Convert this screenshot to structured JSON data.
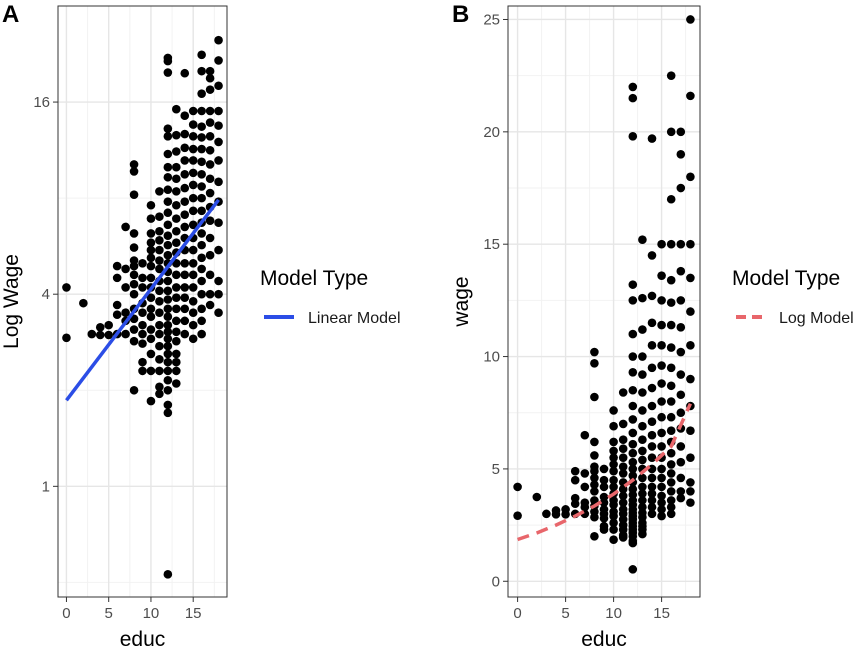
{
  "chart_data": [
    {
      "panel_tag": "A",
      "type": "scatter",
      "xlabel": "educ",
      "ylabel": "Log Wage",
      "y_scale": "log",
      "xlim": [
        -1,
        19
      ],
      "ylim": [
        0.45,
        32
      ],
      "x_ticks": [
        0,
        5,
        10,
        15
      ],
      "x_tick_labels": [
        "0",
        "5",
        "10",
        "15"
      ],
      "y_ticks": [
        1,
        4,
        16
      ],
      "y_tick_labels": [
        "1",
        "4",
        "16"
      ],
      "grid": true,
      "legend": {
        "title": "Model Type",
        "placement": "right",
        "entries": [
          {
            "label": "Linear Model",
            "color": "#2b4de6",
            "style": "solid"
          }
        ]
      },
      "fit_line": {
        "name": "Linear Model",
        "color": "#2b4de6",
        "style": "solid",
        "x": [
          0,
          18
        ],
        "y": [
          1.86,
          7.9
        ]
      },
      "points": [
        [
          0,
          4.2
        ],
        [
          0,
          2.92
        ],
        [
          2,
          3.75
        ],
        [
          3,
          3.0
        ],
        [
          4,
          3.15
        ],
        [
          4,
          2.98
        ],
        [
          5,
          2.98
        ],
        [
          5,
          3.2
        ],
        [
          6,
          3.0
        ],
        [
          6,
          3.45
        ],
        [
          6,
          4.9
        ],
        [
          6,
          4.5
        ],
        [
          6,
          3.7
        ],
        [
          7,
          3.0
        ],
        [
          7,
          3.3
        ],
        [
          7,
          6.5
        ],
        [
          7,
          4.8
        ],
        [
          7,
          4.2
        ],
        [
          7,
          3.5
        ],
        [
          8,
          10.2
        ],
        [
          8,
          9.7
        ],
        [
          8,
          8.2
        ],
        [
          8,
          6.2
        ],
        [
          8,
          5.6
        ],
        [
          8,
          5.1
        ],
        [
          8,
          4.9
        ],
        [
          8,
          4.6
        ],
        [
          8,
          4.3
        ],
        [
          8,
          4.0
        ],
        [
          8,
          3.6
        ],
        [
          8,
          3.35
        ],
        [
          8,
          3.1
        ],
        [
          8,
          2.85
        ],
        [
          8,
          2.0
        ],
        [
          9,
          5.0
        ],
        [
          9,
          4.5
        ],
        [
          9,
          4.2
        ],
        [
          9,
          3.75
        ],
        [
          9,
          3.5
        ],
        [
          9,
          3.2
        ],
        [
          9,
          3.0
        ],
        [
          9,
          2.8
        ],
        [
          9,
          2.45
        ],
        [
          9,
          2.3
        ],
        [
          10,
          7.6
        ],
        [
          10,
          6.9
        ],
        [
          10,
          6.2
        ],
        [
          10,
          5.8
        ],
        [
          10,
          5.5
        ],
        [
          10,
          5.2
        ],
        [
          10,
          4.9
        ],
        [
          10,
          4.5
        ],
        [
          10,
          4.2
        ],
        [
          10,
          3.9
        ],
        [
          10,
          3.6
        ],
        [
          10,
          3.4
        ],
        [
          10,
          3.1
        ],
        [
          10,
          2.9
        ],
        [
          10,
          2.6
        ],
        [
          10,
          2.3
        ],
        [
          10,
          1.85
        ],
        [
          11,
          8.4
        ],
        [
          11,
          7.0
        ],
        [
          11,
          6.3
        ],
        [
          11,
          5.9
        ],
        [
          11,
          5.5
        ],
        [
          11,
          5.1
        ],
        [
          11,
          4.8
        ],
        [
          11,
          4.4
        ],
        [
          11,
          4.1
        ],
        [
          11,
          3.8
        ],
        [
          11,
          3.5
        ],
        [
          11,
          3.2
        ],
        [
          11,
          3.0
        ],
        [
          11,
          2.75
        ],
        [
          11,
          2.5
        ],
        [
          11,
          2.3
        ],
        [
          11,
          2.05
        ],
        [
          11,
          1.95
        ],
        [
          12,
          22.0
        ],
        [
          12,
          21.5
        ],
        [
          12,
          19.8
        ],
        [
          12,
          13.2
        ],
        [
          12,
          12.5
        ],
        [
          12,
          11.0
        ],
        [
          12,
          10.0
        ],
        [
          12,
          9.3
        ],
        [
          12,
          8.5
        ],
        [
          12,
          7.8
        ],
        [
          12,
          7.2
        ],
        [
          12,
          6.6
        ],
        [
          12,
          6.1
        ],
        [
          12,
          5.7
        ],
        [
          12,
          5.3
        ],
        [
          12,
          5.0
        ],
        [
          12,
          4.7
        ],
        [
          12,
          4.4
        ],
        [
          12,
          4.1
        ],
        [
          12,
          3.85
        ],
        [
          12,
          3.6
        ],
        [
          12,
          3.4
        ],
        [
          12,
          3.2
        ],
        [
          12,
          3.05
        ],
        [
          12,
          2.9
        ],
        [
          12,
          2.75
        ],
        [
          12,
          2.6
        ],
        [
          12,
          2.45
        ],
        [
          12,
          2.3
        ],
        [
          12,
          2.15
        ],
        [
          12,
          2.0
        ],
        [
          12,
          1.8
        ],
        [
          12,
          1.7
        ],
        [
          12,
          0.53
        ],
        [
          13,
          15.2
        ],
        [
          13,
          12.6
        ],
        [
          13,
          11.2
        ],
        [
          13,
          10.0
        ],
        [
          13,
          9.2
        ],
        [
          13,
          8.4
        ],
        [
          13,
          7.6
        ],
        [
          13,
          6.9
        ],
        [
          13,
          6.3
        ],
        [
          13,
          5.8
        ],
        [
          13,
          5.4
        ],
        [
          13,
          5.0
        ],
        [
          13,
          4.6
        ],
        [
          13,
          4.2
        ],
        [
          13,
          3.9
        ],
        [
          13,
          3.6
        ],
        [
          13,
          3.3
        ],
        [
          13,
          3.05
        ],
        [
          13,
          2.85
        ],
        [
          13,
          2.6
        ],
        [
          13,
          2.45
        ],
        [
          13,
          2.3
        ],
        [
          13,
          2.1
        ],
        [
          14,
          19.7
        ],
        [
          14,
          14.5
        ],
        [
          14,
          12.7
        ],
        [
          14,
          11.5
        ],
        [
          14,
          10.5
        ],
        [
          14,
          9.5
        ],
        [
          14,
          8.6
        ],
        [
          14,
          7.8
        ],
        [
          14,
          7.1
        ],
        [
          14,
          6.5
        ],
        [
          14,
          6.0
        ],
        [
          14,
          5.5
        ],
        [
          14,
          5.0
        ],
        [
          14,
          4.6
        ],
        [
          14,
          4.2
        ],
        [
          14,
          3.9
        ],
        [
          14,
          3.6
        ],
        [
          14,
          3.3
        ],
        [
          14,
          3.0
        ],
        [
          15,
          15.0
        ],
        [
          15,
          13.6
        ],
        [
          15,
          12.5
        ],
        [
          15,
          11.4
        ],
        [
          15,
          10.5
        ],
        [
          15,
          9.6
        ],
        [
          15,
          8.8
        ],
        [
          15,
          8.0
        ],
        [
          15,
          7.3
        ],
        [
          15,
          6.6
        ],
        [
          15,
          6.0
        ],
        [
          15,
          5.5
        ],
        [
          15,
          5.0
        ],
        [
          15,
          4.6
        ],
        [
          15,
          4.2
        ],
        [
          15,
          3.8
        ],
        [
          15,
          3.5
        ],
        [
          15,
          3.2
        ],
        [
          15,
          2.9
        ],
        [
          16,
          22.5
        ],
        [
          16,
          20.0
        ],
        [
          16,
          17.0
        ],
        [
          16,
          15.0
        ],
        [
          16,
          13.4
        ],
        [
          16,
          12.4
        ],
        [
          16,
          11.4
        ],
        [
          16,
          10.4
        ],
        [
          16,
          9.5
        ],
        [
          16,
          8.7
        ],
        [
          16,
          8.0
        ],
        [
          16,
          7.3
        ],
        [
          16,
          6.7
        ],
        [
          16,
          6.2
        ],
        [
          16,
          5.7
        ],
        [
          16,
          5.2
        ],
        [
          16,
          4.8
        ],
        [
          16,
          4.4
        ],
        [
          16,
          4.0
        ],
        [
          16,
          3.6
        ],
        [
          16,
          3.3
        ],
        [
          16,
          3.0
        ],
        [
          17,
          20.0
        ],
        [
          17,
          19.0
        ],
        [
          17,
          17.5
        ],
        [
          17,
          15.0
        ],
        [
          17,
          13.8
        ],
        [
          17,
          12.5
        ],
        [
          17,
          11.3
        ],
        [
          17,
          10.2
        ],
        [
          17,
          9.2
        ],
        [
          17,
          8.3
        ],
        [
          17,
          7.5
        ],
        [
          17,
          6.8
        ],
        [
          17,
          6.0
        ],
        [
          17,
          5.3
        ],
        [
          17,
          4.6
        ],
        [
          17,
          4.0
        ],
        [
          17,
          3.7
        ],
        [
          18,
          25.0
        ],
        [
          18,
          21.6
        ],
        [
          18,
          18.0
        ],
        [
          18,
          15.0
        ],
        [
          18,
          13.5
        ],
        [
          18,
          12.0
        ],
        [
          18,
          10.5
        ],
        [
          18,
          9.0
        ],
        [
          18,
          7.8
        ],
        [
          18,
          6.7
        ],
        [
          18,
          5.5
        ],
        [
          18,
          4.4
        ],
        [
          18,
          4.0
        ],
        [
          18,
          3.5
        ]
      ]
    },
    {
      "panel_tag": "B",
      "type": "scatter",
      "xlabel": "educ",
      "ylabel": "wage",
      "y_scale": "linear",
      "xlim": [
        -1,
        19
      ],
      "ylim": [
        -0.7,
        25.6
      ],
      "x_ticks": [
        0,
        5,
        10,
        15
      ],
      "x_tick_labels": [
        "0",
        "5",
        "10",
        "15"
      ],
      "y_ticks": [
        0,
        5,
        10,
        15,
        20,
        25
      ],
      "y_tick_labels": [
        "0",
        "5",
        "10",
        "15",
        "20",
        "25"
      ],
      "grid": true,
      "legend": {
        "title": "Model Type",
        "placement": "right",
        "entries": [
          {
            "label": "Log Model",
            "color": "#e8666b",
            "style": "dashed"
          }
        ]
      },
      "fit_curve": {
        "name": "Log Model",
        "color": "#e8666b",
        "style": "dashed",
        "x": [
          0,
          2,
          4,
          6,
          8,
          10,
          12,
          14,
          16,
          18
        ],
        "y": [
          1.86,
          2.15,
          2.5,
          2.9,
          3.35,
          3.88,
          4.5,
          5.2,
          6.0,
          7.9
        ]
      }
    }
  ]
}
